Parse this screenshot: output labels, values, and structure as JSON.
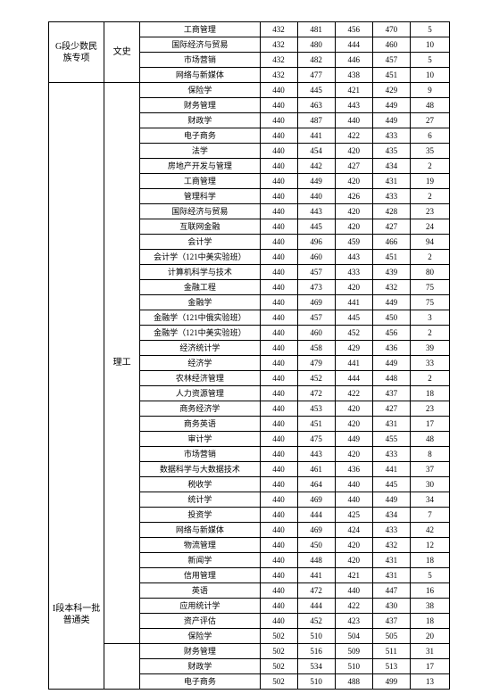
{
  "blocks": [
    {
      "category": "G段少数民\n族专项",
      "category_rowspan": 4,
      "track": "文史",
      "track_rowspan": 4,
      "rows": [
        [
          "工商管理",
          432,
          481,
          456,
          470,
          5
        ],
        [
          "国际经济与贸易",
          432,
          480,
          444,
          460,
          10
        ],
        [
          "市场营销",
          432,
          482,
          446,
          457,
          5
        ],
        [
          "网络与新媒体",
          432,
          477,
          438,
          451,
          10
        ]
      ]
    },
    {
      "category": "I段本科一批\n普通类",
      "category_rowspan": 41,
      "category_attach_row": 32,
      "track": "理工",
      "track_rowspan": 37,
      "track_attach_row": 17,
      "rows": [
        [
          "保险学",
          440,
          445,
          421,
          429,
          9
        ],
        [
          "财务管理",
          440,
          463,
          443,
          449,
          48
        ],
        [
          "财政学",
          440,
          487,
          440,
          449,
          27
        ],
        [
          "电子商务",
          440,
          441,
          422,
          433,
          6
        ],
        [
          "法学",
          440,
          454,
          420,
          435,
          35
        ],
        [
          "房地产开发与管理",
          440,
          442,
          427,
          434,
          2
        ],
        [
          "工商管理",
          440,
          449,
          420,
          431,
          19
        ],
        [
          "管理科学",
          440,
          440,
          426,
          433,
          2
        ],
        [
          "国际经济与贸易",
          440,
          443,
          420,
          428,
          23
        ],
        [
          "互联网金融",
          440,
          445,
          420,
          427,
          24
        ],
        [
          "会计学",
          440,
          496,
          459,
          466,
          94
        ],
        [
          "会计学（121中美实验班）",
          440,
          460,
          443,
          451,
          2
        ],
        [
          "计算机科学与技术",
          440,
          457,
          433,
          439,
          80
        ],
        [
          "金融工程",
          440,
          473,
          420,
          432,
          75
        ],
        [
          "金融学",
          440,
          469,
          441,
          449,
          75
        ],
        [
          "金融学（121中俄实验班）",
          440,
          457,
          445,
          450,
          3
        ],
        [
          "金融学（121中美实验班）",
          440,
          460,
          452,
          456,
          2
        ],
        [
          "经济统计学",
          440,
          458,
          429,
          436,
          39
        ],
        [
          "经济学",
          440,
          479,
          441,
          449,
          33
        ],
        [
          "农林经济管理",
          440,
          452,
          444,
          448,
          2
        ],
        [
          "人力资源管理",
          440,
          472,
          422,
          437,
          18
        ],
        [
          "商务经济学",
          440,
          453,
          420,
          427,
          23
        ],
        [
          "商务英语",
          440,
          451,
          420,
          431,
          17
        ],
        [
          "审计学",
          440,
          475,
          449,
          455,
          48
        ],
        [
          "市场营销",
          440,
          443,
          420,
          433,
          8
        ],
        [
          "数据科学与大数据技术",
          440,
          461,
          436,
          441,
          37
        ],
        [
          "税收学",
          440,
          464,
          440,
          445,
          30
        ],
        [
          "统计学",
          440,
          469,
          440,
          449,
          34
        ],
        [
          "投资学",
          440,
          444,
          425,
          434,
          7
        ],
        [
          "网络与新媒体",
          440,
          469,
          424,
          433,
          42
        ],
        [
          "物流管理",
          440,
          450,
          420,
          432,
          12
        ],
        [
          "新闻学",
          440,
          448,
          420,
          431,
          18
        ],
        [
          "信用管理",
          440,
          441,
          421,
          431,
          5
        ],
        [
          "英语",
          440,
          472,
          440,
          447,
          16
        ],
        [
          "应用统计学",
          440,
          444,
          422,
          430,
          38
        ],
        [
          "资产评估",
          440,
          452,
          423,
          437,
          18
        ],
        [
          "保险学",
          502,
          510,
          504,
          505,
          20
        ],
        [
          "财务管理",
          502,
          516,
          509,
          511,
          31
        ],
        [
          "财政学",
          502,
          534,
          510,
          513,
          17
        ],
        [
          "电子商务",
          502,
          510,
          488,
          499,
          13
        ]
      ],
      "track2_start": 37,
      "track2_rowspan": 4
    }
  ],
  "colors": {
    "border": "#000000",
    "bg": "#ffffff",
    "text": "#000000"
  }
}
